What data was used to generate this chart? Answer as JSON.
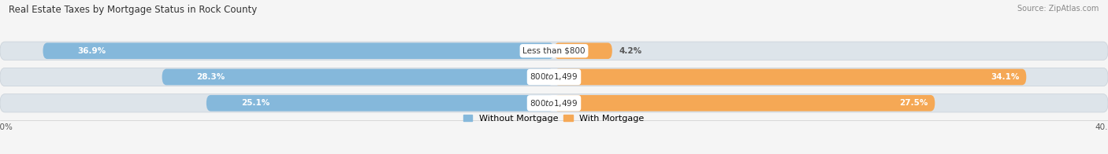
{
  "title": "Real Estate Taxes by Mortgage Status in Rock County",
  "source": "Source: ZipAtlas.com",
  "rows": [
    {
      "label": "Less than $800",
      "without_mortgage": 36.9,
      "with_mortgage": 4.2
    },
    {
      "label": "$800 to $1,499",
      "without_mortgage": 28.3,
      "with_mortgage": 34.1
    },
    {
      "label": "$800 to $1,499",
      "without_mortgage": 25.1,
      "with_mortgage": 27.5
    }
  ],
  "xlim": 40.0,
  "color_without": "#85b8db",
  "color_with": "#f5a855",
  "color_track": "#dde4ea",
  "bar_height": 0.62,
  "background_color": "#f5f5f5",
  "title_fontsize": 8.5,
  "source_fontsize": 7,
  "label_fontsize": 7.5,
  "bar_pct_fontsize": 7.5,
  "axis_label_fontsize": 7.5,
  "legend_fontsize": 8
}
